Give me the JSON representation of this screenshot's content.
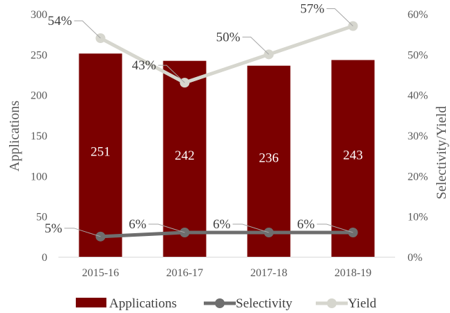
{
  "chart_data": {
    "type": "bar",
    "categories": [
      "2015-16",
      "2016-17",
      "2017-18",
      "2018-19"
    ],
    "series": [
      {
        "name": "Applications",
        "kind": "bar",
        "axis": "left",
        "color": "#7B0000",
        "values": [
          251,
          242,
          236,
          243
        ],
        "labels": [
          "251",
          "242",
          "236",
          "243"
        ]
      },
      {
        "name": "Selectivity",
        "kind": "line",
        "axis": "right",
        "color": "#6E6E6E",
        "values": [
          5,
          6,
          6,
          6
        ],
        "labels": [
          "5%",
          "6%",
          "6%",
          "6%"
        ]
      },
      {
        "name": "Yield",
        "kind": "line",
        "axis": "right",
        "color": "#D6D6CE",
        "values": [
          54,
          43,
          50,
          57
        ],
        "labels": [
          "54%",
          "43%",
          "50%",
          "57%"
        ]
      }
    ],
    "ylabel": "Applications",
    "y2label": "Selectivity/Yield",
    "ylim": [
      0,
      300
    ],
    "y2lim": [
      0,
      60
    ],
    "yticks": [
      "0",
      "50",
      "100",
      "150",
      "200",
      "250",
      "300"
    ],
    "y2ticks": [
      "0%",
      "10%",
      "20%",
      "30%",
      "40%",
      "50%",
      "60%"
    ],
    "grid": false,
    "legend": "bottom"
  }
}
